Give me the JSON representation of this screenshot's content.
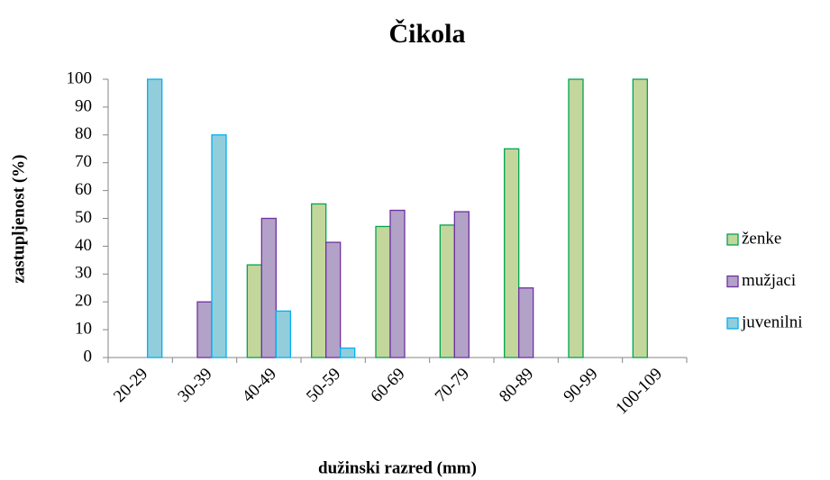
{
  "chart_data": {
    "type": "bar",
    "title": "Čikola",
    "xlabel": "dužinski razred (mm)",
    "ylabel": "zastupljenost (%)",
    "categories": [
      "20-29",
      "30-39",
      "40-49",
      "50-59",
      "60-69",
      "70-79",
      "80-89",
      "90-99",
      "100-109"
    ],
    "series": [
      {
        "name": "ženke",
        "color": "#c3d69b",
        "edge": "#00a550",
        "values": [
          0,
          0,
          33.3,
          55.2,
          47.1,
          47.6,
          75,
          100,
          100
        ]
      },
      {
        "name": "mužjaci",
        "color": "#b3a2c7",
        "edge": "#7030a0",
        "values": [
          0,
          20,
          50,
          41.4,
          52.9,
          52.4,
          25,
          0,
          0
        ]
      },
      {
        "name": "juvenilni",
        "color": "#92cddc",
        "edge": "#00b0f0",
        "values": [
          100,
          80,
          16.7,
          3.4,
          0,
          0,
          0,
          0,
          0
        ]
      }
    ],
    "ylim": [
      0,
      100
    ],
    "yticks": [
      0,
      10,
      20,
      30,
      40,
      50,
      60,
      70,
      80,
      90,
      100
    ],
    "legend": "right"
  }
}
